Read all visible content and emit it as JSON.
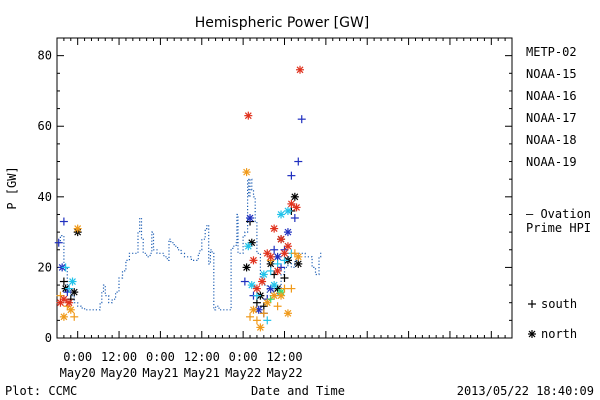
{
  "chart_data": {
    "type": "scatter",
    "title": "Hemispheric Power [GW]",
    "ylabel": "P [GW]",
    "xlabel": "Date and Time",
    "ylim": [
      0,
      85
    ],
    "xlim_hours": [
      -6,
      126
    ],
    "y_ticks": [
      0,
      20,
      40,
      60,
      80
    ],
    "x_ticks": [
      {
        "h": 0,
        "line1": "0:00",
        "line2": "May20"
      },
      {
        "h": 12,
        "line1": "12:00",
        "line2": "May20"
      },
      {
        "h": 24,
        "line1": "0:00",
        "line2": "May21"
      },
      {
        "h": 36,
        "line1": "12:00",
        "line2": "May21"
      },
      {
        "h": 48,
        "line1": "0:00",
        "line2": "May22"
      },
      {
        "h": 60,
        "line1": "12:00",
        "line2": "May22"
      }
    ],
    "ovation_label": [
      "— Ovation",
      "Prime HPI"
    ],
    "ovation_color": "#1f5fb4",
    "ovation_line": [
      [
        -5.5,
        27
      ],
      [
        -5,
        29
      ],
      [
        -4,
        20
      ],
      [
        -3,
        14
      ],
      [
        -2,
        12
      ],
      [
        -1,
        10
      ],
      [
        0,
        9
      ],
      [
        1,
        8.5
      ],
      [
        2,
        8
      ],
      [
        6,
        8
      ],
      [
        6.5,
        10
      ],
      [
        7,
        13
      ],
      [
        7.5,
        15
      ],
      [
        8,
        12
      ],
      [
        9,
        10
      ],
      [
        10,
        11
      ],
      [
        11,
        13
      ],
      [
        12,
        17
      ],
      [
        13,
        19
      ],
      [
        14,
        22
      ],
      [
        15,
        24
      ],
      [
        17,
        24
      ],
      [
        17.5,
        30
      ],
      [
        18,
        34
      ],
      [
        18.5,
        28
      ],
      [
        19,
        24
      ],
      [
        20,
        23
      ],
      [
        21,
        24
      ],
      [
        21.5,
        30
      ],
      [
        22,
        25
      ],
      [
        23,
        24
      ],
      [
        24,
        24
      ],
      [
        25,
        23
      ],
      [
        26,
        22
      ],
      [
        26.5,
        28
      ],
      [
        27,
        27
      ],
      [
        28,
        26
      ],
      [
        29,
        25
      ],
      [
        30,
        24
      ],
      [
        31,
        23
      ],
      [
        33,
        22
      ],
      [
        34,
        22
      ],
      [
        35,
        24
      ],
      [
        35.5,
        25
      ],
      [
        36,
        28
      ],
      [
        37,
        31
      ],
      [
        37.5,
        32
      ],
      [
        38,
        21
      ],
      [
        38.5,
        25
      ],
      [
        39,
        24
      ],
      [
        39.5,
        8
      ],
      [
        40,
        9
      ],
      [
        41,
        8
      ],
      [
        42,
        8
      ],
      [
        44,
        8
      ],
      [
        44.5,
        25
      ],
      [
        45,
        26
      ],
      [
        46,
        27
      ],
      [
        46.2,
        35
      ],
      [
        46.5,
        24
      ],
      [
        47,
        24
      ],
      [
        48,
        29
      ],
      [
        48.5,
        30
      ],
      [
        49,
        30
      ],
      [
        49.3,
        45
      ],
      [
        49.6,
        40
      ],
      [
        50,
        45
      ],
      [
        50.5,
        42
      ],
      [
        51,
        40
      ],
      [
        51.5,
        33
      ],
      [
        52,
        24
      ],
      [
        53,
        17
      ],
      [
        54,
        15
      ],
      [
        55,
        12
      ],
      [
        56,
        13
      ],
      [
        57,
        12
      ],
      [
        58,
        14
      ],
      [
        59,
        18
      ],
      [
        60,
        20
      ],
      [
        61,
        23
      ],
      [
        62,
        20
      ],
      [
        63,
        22
      ],
      [
        64,
        24
      ],
      [
        65,
        24
      ],
      [
        66,
        23
      ],
      [
        67,
        23
      ],
      [
        68,
        20
      ],
      [
        69,
        18
      ],
      [
        70,
        23
      ],
      [
        70.5,
        24
      ],
      [
        71,
        24
      ]
    ],
    "legend": [
      {
        "name": "METP-02",
        "color": "#000000"
      },
      {
        "name": "NOAA-15",
        "color": "#1f2fbf"
      },
      {
        "name": "NOAA-16",
        "color": "#22c3ea"
      },
      {
        "name": "NOAA-17",
        "color": "#26e07a"
      },
      {
        "name": "NOAA-18",
        "color": "#f09a1a"
      },
      {
        "name": "NOAA-19",
        "color": "#e0321e"
      }
    ],
    "marker_legend": [
      {
        "symbol": "+",
        "label": "south"
      },
      {
        "symbol": "*",
        "label": "north"
      }
    ],
    "series": [
      {
        "name": "METP-02",
        "color": "#000000",
        "points": [
          [
            -4,
            16,
            "+"
          ],
          [
            -3.5,
            14,
            "*"
          ],
          [
            -2,
            11,
            "+"
          ],
          [
            -1,
            13,
            "*"
          ],
          [
            0,
            30,
            "*"
          ],
          [
            49,
            20,
            "*"
          ],
          [
            50,
            33,
            "+"
          ],
          [
            50.5,
            27,
            "*"
          ],
          [
            52,
            10,
            "+"
          ],
          [
            53,
            12,
            "*"
          ],
          [
            54,
            9,
            "+"
          ],
          [
            56,
            21,
            "*"
          ],
          [
            57,
            18,
            "+"
          ],
          [
            58,
            14,
            "*"
          ],
          [
            59,
            28,
            "*"
          ],
          [
            60,
            17,
            "+"
          ],
          [
            61,
            22,
            "*"
          ],
          [
            62,
            36,
            "+"
          ],
          [
            63,
            40,
            "*"
          ],
          [
            64,
            21,
            "*"
          ]
        ]
      },
      {
        "name": "NOAA-15",
        "color": "#1f2fbf",
        "points": [
          [
            -5.5,
            27,
            "+"
          ],
          [
            -4.5,
            20,
            "*"
          ],
          [
            -4,
            33,
            "+"
          ],
          [
            -3,
            13,
            "+"
          ],
          [
            48.5,
            16,
            "+"
          ],
          [
            50,
            34,
            "*"
          ],
          [
            51,
            12,
            "+"
          ],
          [
            52.5,
            8,
            "*"
          ],
          [
            54,
            7,
            "+"
          ],
          [
            55,
            11,
            "+"
          ],
          [
            56,
            14,
            "*"
          ],
          [
            57,
            25,
            "+"
          ],
          [
            58,
            23,
            "*"
          ],
          [
            59,
            20,
            "+"
          ],
          [
            60,
            25,
            "+"
          ],
          [
            61,
            30,
            "*"
          ],
          [
            62,
            46,
            "+"
          ],
          [
            63,
            34,
            "+"
          ],
          [
            64,
            50,
            "+"
          ],
          [
            65,
            62,
            "+"
          ]
        ]
      },
      {
        "name": "NOAA-16",
        "color": "#22c3ea",
        "points": [
          [
            -3.5,
            20,
            "+"
          ],
          [
            -2.5,
            14,
            "+"
          ],
          [
            -1.5,
            16,
            "*"
          ],
          [
            49.5,
            26,
            "*"
          ],
          [
            50.5,
            15,
            "*"
          ],
          [
            52,
            12,
            "+"
          ],
          [
            54,
            18,
            "*"
          ],
          [
            55,
            5,
            "+"
          ],
          [
            56,
            19,
            "+"
          ],
          [
            57,
            15,
            "*"
          ],
          [
            58,
            21,
            "+"
          ],
          [
            59,
            35,
            "*"
          ],
          [
            60,
            22,
            "+"
          ],
          [
            61,
            36,
            "*"
          ],
          [
            62,
            24,
            "+"
          ]
        ]
      },
      {
        "name": "NOAA-17",
        "color": "#26e07a",
        "points": [
          [
            56,
            11,
            "+"
          ],
          [
            59,
            13,
            "*"
          ]
        ]
      },
      {
        "name": "NOAA-18",
        "color": "#f09a1a",
        "points": [
          [
            -5,
            12,
            "+"
          ],
          [
            -4,
            6,
            "*"
          ],
          [
            -3,
            9,
            "+"
          ],
          [
            -2,
            8,
            "*"
          ],
          [
            -1,
            6,
            "+"
          ],
          [
            0,
            31,
            "*"
          ],
          [
            49,
            47,
            "*"
          ],
          [
            50,
            6,
            "+"
          ],
          [
            51,
            8,
            "*"
          ],
          [
            52,
            5,
            "+"
          ],
          [
            53,
            3,
            "*"
          ],
          [
            54,
            7,
            "+"
          ],
          [
            55,
            10,
            "*"
          ],
          [
            56,
            22,
            "+"
          ],
          [
            57,
            12,
            "*"
          ],
          [
            58,
            9,
            "+"
          ],
          [
            59,
            12,
            "*"
          ],
          [
            60,
            14,
            "+"
          ],
          [
            61,
            7,
            "*"
          ],
          [
            62,
            14,
            "+"
          ],
          [
            63,
            24,
            "+"
          ],
          [
            64,
            23,
            "*"
          ]
        ]
      },
      {
        "name": "NOAA-19",
        "color": "#e0321e",
        "points": [
          [
            -5,
            10,
            "*"
          ],
          [
            -4,
            11,
            "*"
          ],
          [
            -2.5,
            10,
            "*"
          ],
          [
            49.5,
            63,
            "*"
          ],
          [
            51,
            22,
            "*"
          ],
          [
            52,
            14,
            "*"
          ],
          [
            53.5,
            16,
            "*"
          ],
          [
            55,
            24,
            "*"
          ],
          [
            56,
            23,
            "*"
          ],
          [
            57,
            31,
            "*"
          ],
          [
            58,
            19,
            "*"
          ],
          [
            59,
            28,
            "*"
          ],
          [
            60,
            24,
            "*"
          ],
          [
            61,
            26,
            "*"
          ],
          [
            62,
            38,
            "*"
          ],
          [
            63.5,
            37,
            "*"
          ],
          [
            64.5,
            76,
            "*"
          ]
        ]
      }
    ]
  },
  "footer": {
    "plot_source": "Plot: CCMC",
    "timestamp": "2013/05/22 18:40:09"
  }
}
